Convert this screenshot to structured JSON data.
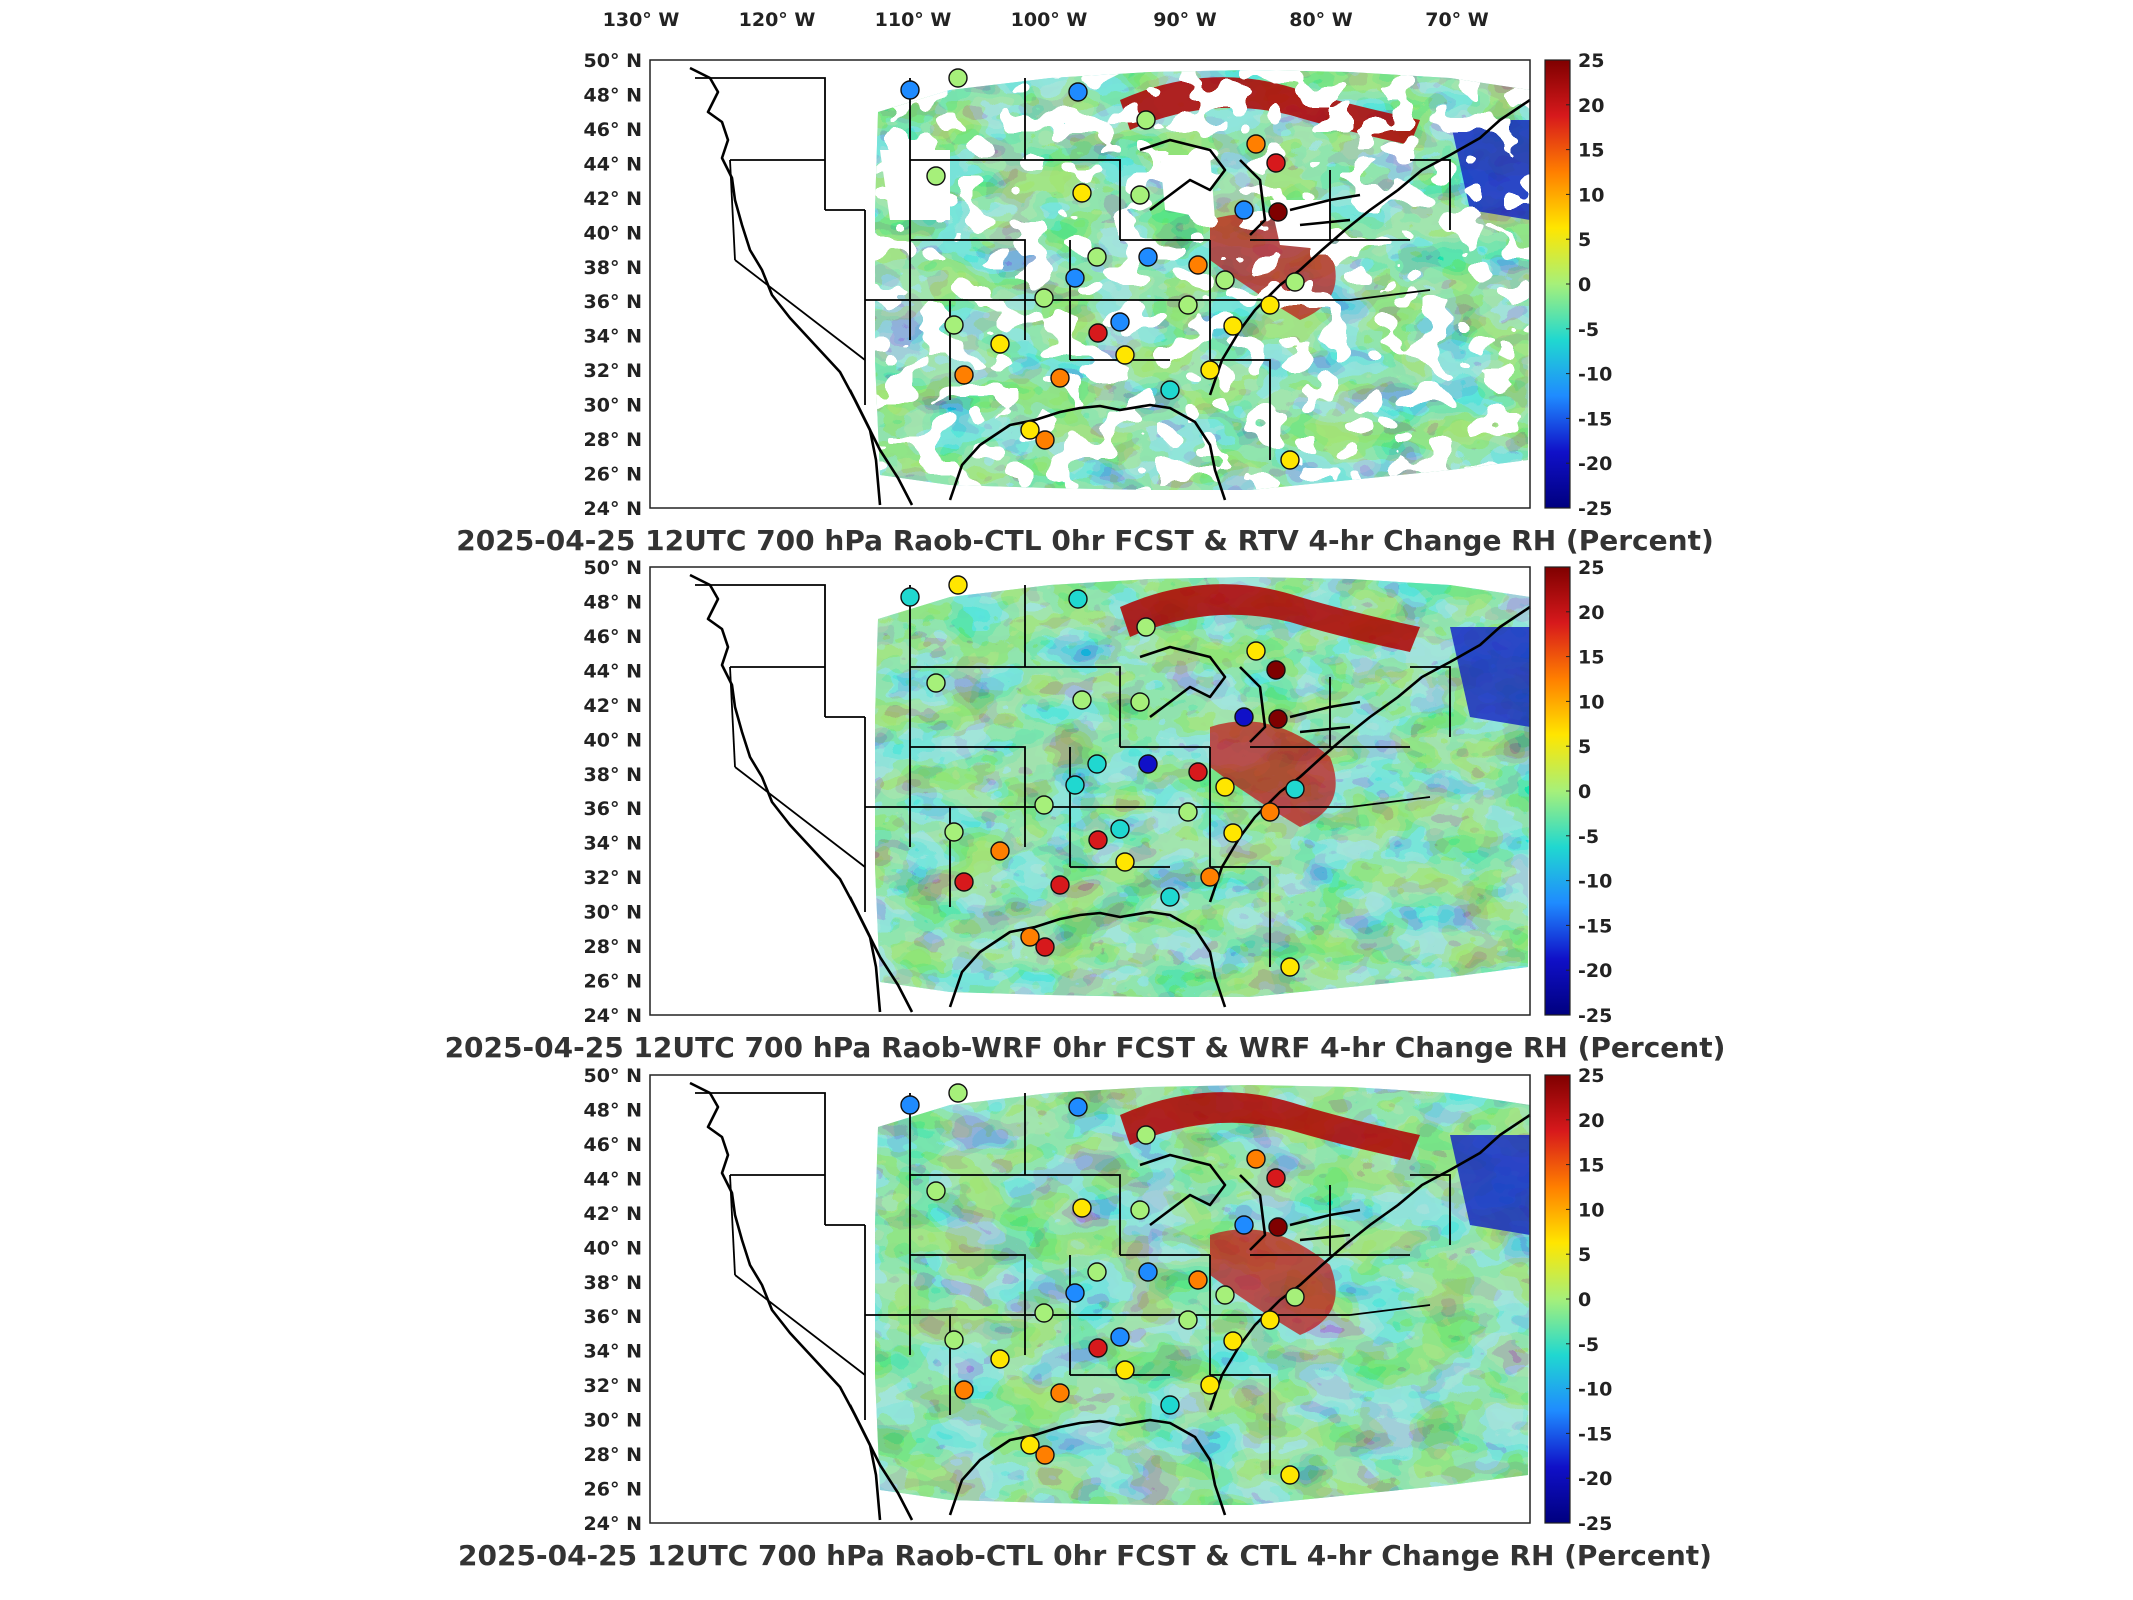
{
  "lon_ticks": [
    "130° W",
    "120° W",
    "110° W",
    "100° W",
    "90° W",
    "80° W",
    "70° W"
  ],
  "lat_ticks": [
    "50° N",
    "48° N",
    "46° N",
    "44° N",
    "42° N",
    "40° N",
    "38° N",
    "36° N",
    "34° N",
    "32° N",
    "30° N",
    "28° N",
    "26° N",
    "24° N"
  ],
  "colorbar": {
    "ticks": [
      "25",
      "20",
      "15",
      "10",
      "5",
      "0",
      "-5",
      "-10",
      "-15",
      "-20",
      "-25"
    ],
    "colors": [
      "#7f0000",
      "#d7191c",
      "#ff7f00",
      "#ffe600",
      "#a6f07a",
      "#20d8d0",
      "#1f8bff",
      "#1010c8",
      "#00007f"
    ]
  },
  "panels": [
    {
      "title": "2025-04-25 12UTC 700 hPa Raob-CTL 0hr FCST & RTV 4-hr Change RH (Percent)",
      "field": "RTV 4-hr Change RH",
      "has_missing": true
    },
    {
      "title": "2025-04-25 12UTC 700 hPa Raob-WRF 0hr FCST & WRF 4-hr Change RH (Percent)",
      "field": "WRF 4-hr Change RH",
      "has_missing": false
    },
    {
      "title": "2025-04-25 12UTC 700 hPa Raob-CTL 0hr FCST & CTL 4-hr Change RH (Percent)",
      "field": "CTL 4-hr Change RH",
      "has_missing": false
    }
  ]
}
